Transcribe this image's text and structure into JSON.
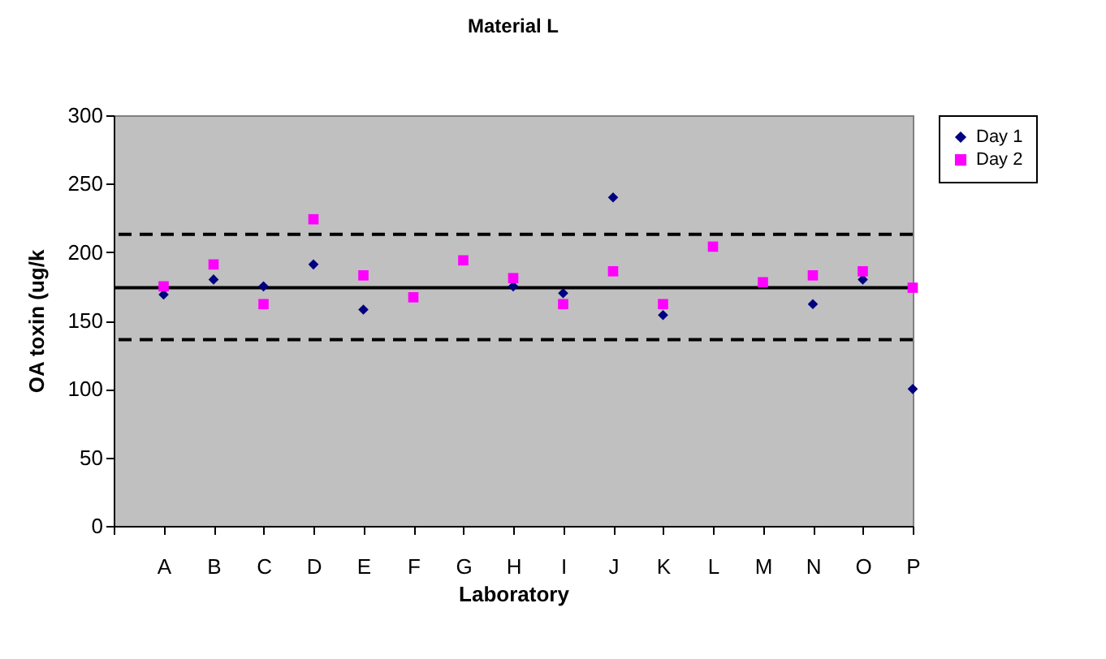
{
  "chart_data": {
    "type": "scatter",
    "title": "Material  L",
    "xlabel": "Laboratory",
    "ylabel": "OA toxin (ug/k",
    "categories": [
      null,
      "A",
      "B",
      "C",
      "D",
      "E",
      "F",
      "G",
      "H",
      "I",
      "J",
      "K",
      "L",
      "M",
      "N",
      "O",
      "P"
    ],
    "series": [
      {
        "name": "Day 1",
        "color": "#000080",
        "marker": "diamond",
        "values": [
          null,
          169,
          180,
          175,
          191,
          158,
          null,
          null,
          175,
          170,
          240,
          154,
          null,
          null,
          162,
          180,
          100
        ]
      },
      {
        "name": "Day 2",
        "color": "#ff00ff",
        "marker": "square",
        "values": [
          null,
          175,
          191,
          162,
          224,
          183,
          167,
          194,
          181,
          162,
          186,
          162,
          204,
          178,
          183,
          186,
          174
        ]
      }
    ],
    "ylim": [
      0,
      300
    ],
    "yticks": [
      0,
      50,
      100,
      150,
      200,
      250,
      300
    ],
    "ref_lines": [
      {
        "axis": "y",
        "value": 174,
        "color": "#000000",
        "line_style": "solid"
      },
      {
        "axis": "y",
        "value": 213,
        "color": "#000000",
        "line_style": "dashed"
      },
      {
        "axis": "y",
        "value": 136,
        "color": "#000000",
        "line_style": "dashed"
      }
    ],
    "grid": false,
    "legend": "right"
  }
}
